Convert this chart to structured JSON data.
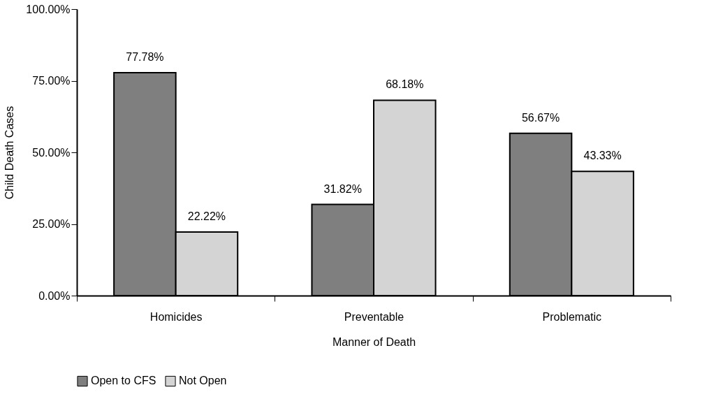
{
  "chart_data": {
    "type": "bar",
    "xlabel": "Manner of Death",
    "ylabel": "Child Death Cases",
    "categories": [
      "Homicides",
      "Preventable",
      "Problematic"
    ],
    "series": [
      {
        "name": "Open to CFS",
        "color": "#7f7f7f",
        "values": [
          77.78,
          31.82,
          56.67
        ],
        "value_labels": [
          "77.78%",
          "31.82%",
          "56.67%"
        ]
      },
      {
        "name": "Not Open",
        "color": "#d4d4d4",
        "values": [
          22.22,
          68.18,
          43.33
        ],
        "value_labels": [
          "22.22%",
          "68.18%",
          "43.33%"
        ]
      }
    ],
    "ylim": [
      0,
      100
    ],
    "yticks": [
      {
        "value": 0,
        "label": "0.00%"
      },
      {
        "value": 25,
        "label": "25.00%"
      },
      {
        "value": 50,
        "label": "50.00%"
      },
      {
        "value": 75,
        "label": "75.00%"
      },
      {
        "value": 100,
        "label": "100.00%"
      }
    ],
    "grid": false,
    "legend": "bottom"
  }
}
